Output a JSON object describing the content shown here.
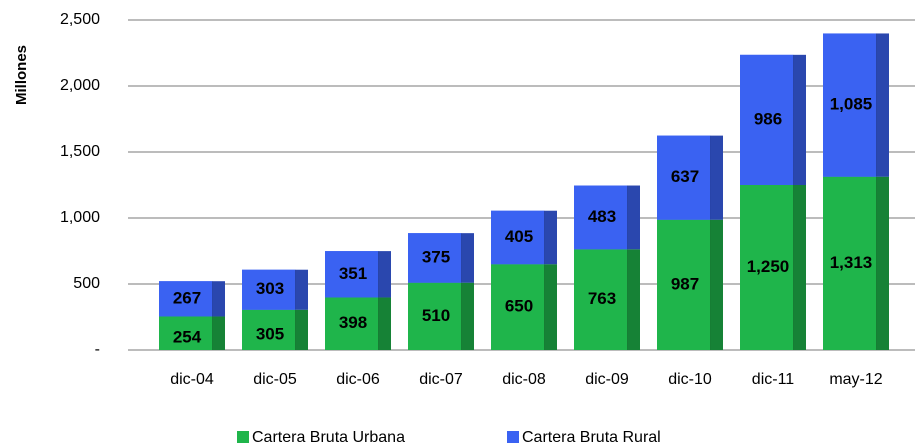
{
  "chart_data": {
    "type": "stacked-bar",
    "y_label": "Millones",
    "categories": [
      "dic-04",
      "dic-05",
      "dic-06",
      "dic-07",
      "dic-08",
      "dic-09",
      "dic-10",
      "dic-11",
      "may-12"
    ],
    "series": [
      {
        "name": "Cartera Bruta Urbana",
        "color": "#1fb54b",
        "values": [
          254,
          305,
          398,
          510,
          650,
          763,
          987,
          1250,
          1313
        ],
        "value_labels": [
          "254",
          "305",
          "398",
          "510",
          "650",
          "763",
          "987",
          "1,250",
          "1,313"
        ]
      },
      {
        "name": "Cartera Bruta Rural",
        "color": "#3a62f2",
        "values": [
          267,
          303,
          351,
          375,
          405,
          483,
          637,
          986,
          1085
        ],
        "value_labels": [
          "267",
          "303",
          "351",
          "375",
          "405",
          "483",
          "637",
          "986",
          "1,085"
        ]
      }
    ],
    "ylim": [
      0,
      2500
    ],
    "yticks": [
      {
        "value": 0,
        "label": "-"
      },
      500,
      {
        "value": 1000,
        "label": "1,000"
      },
      {
        "value": 1500,
        "label": "1,500"
      },
      {
        "value": 2000,
        "label": "2,000"
      },
      {
        "value": 2500,
        "label": "2,500"
      }
    ],
    "grid": true,
    "legend": "bottom"
  }
}
